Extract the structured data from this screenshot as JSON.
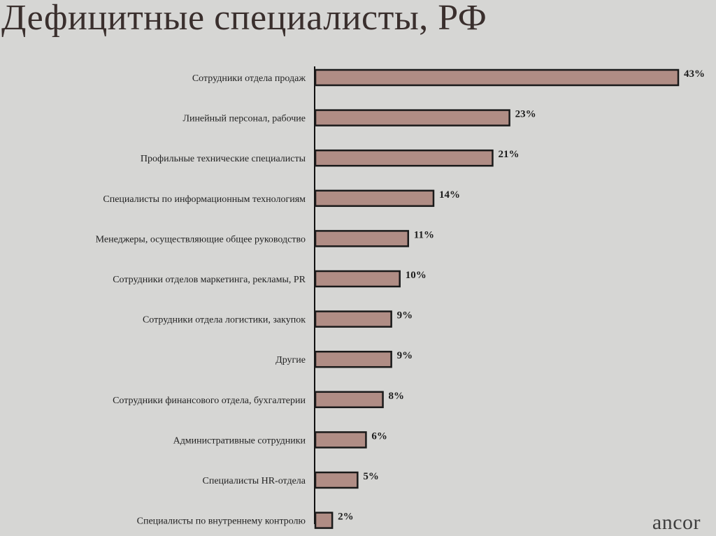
{
  "header": {
    "title": "Дефицитные специалисты, РФ"
  },
  "brand": {
    "logo_text": "ancor"
  },
  "colors": {
    "background": "#d6d6d4",
    "bar_fill": "#b08d85",
    "bar_stroke": "#1a1a1a",
    "title": "#3a2f2d"
  },
  "chart_data": {
    "type": "bar",
    "orientation": "horizontal",
    "title": "Дефицитные специалисты, РФ",
    "xlabel": "",
    "ylabel": "",
    "xlim": [
      0,
      43
    ],
    "grid": false,
    "legend": "none",
    "categories": [
      "Сотрудники отдела продаж",
      "Линейный персонал, рабочие",
      "Профильные технические специалисты",
      "Специалисты по информационным технологиям",
      "Менеджеры, осуществляющие общее руководство",
      "Сотрудники отделов маркетинга, рекламы, PR",
      "Сотрудники отдела логистики, закупок",
      "Другие",
      "Сотрудники финансового отдела, бухгалтерии",
      "Административные сотрудники",
      "Специалисты HR-отдела",
      "Специалисты по внутреннему контролю"
    ],
    "values": [
      43,
      23,
      21,
      14,
      11,
      10,
      9,
      9,
      8,
      6,
      5,
      2
    ],
    "value_labels": [
      "43%",
      "23%",
      "21%",
      "14%",
      "11%",
      "10%",
      "9%",
      "9%",
      "8%",
      "6%",
      "5%",
      "2%"
    ]
  }
}
